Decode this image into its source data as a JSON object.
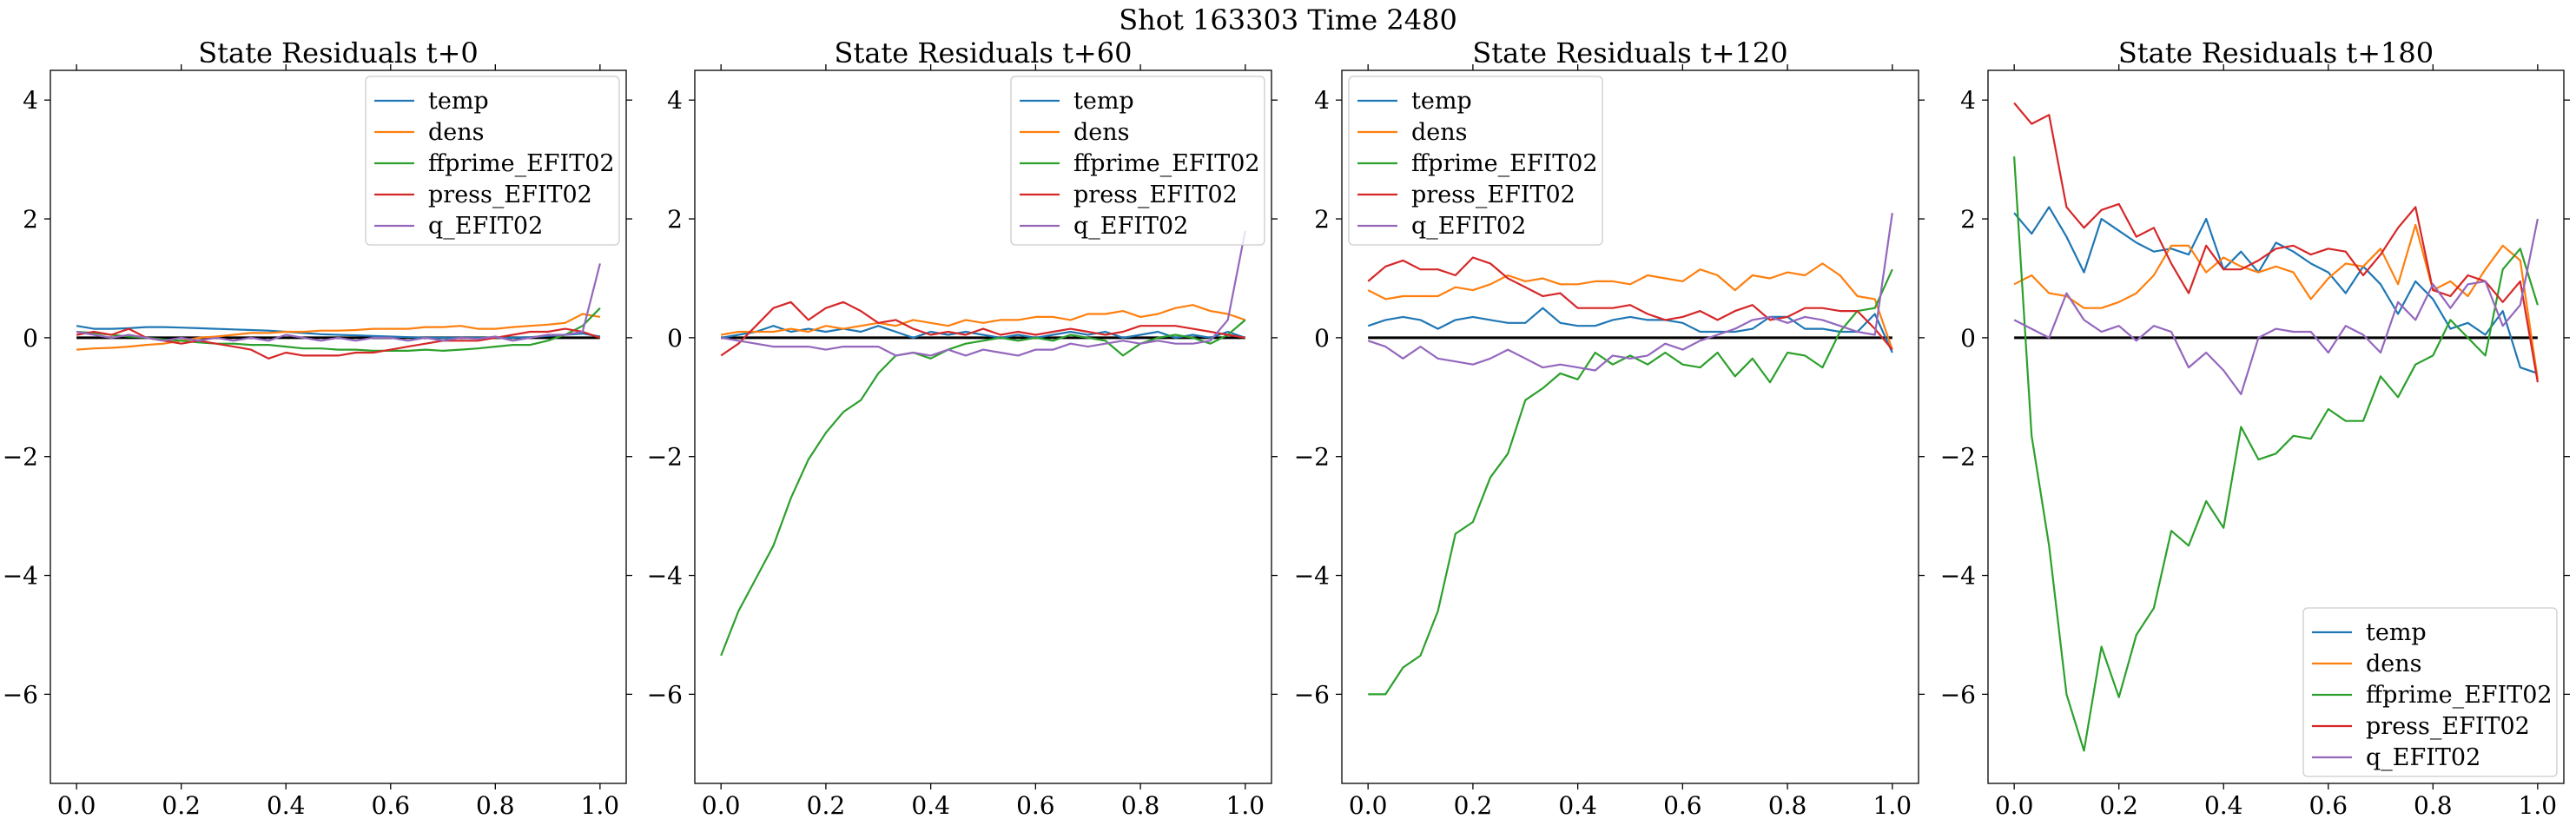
{
  "suptitle": "Shot 163303   Time 2480",
  "colors": {
    "temp": "#1f77b4",
    "dens": "#ff7f0e",
    "ffprime_EFIT02": "#2ca02c",
    "press_EFIT02": "#d62728",
    "q_EFIT02": "#9467bd",
    "zero_line": "#000000"
  },
  "chart_data": [
    {
      "type": "line",
      "title": "State Residuals t+0",
      "xlim": [
        -0.05,
        1.05
      ],
      "ylim": [
        -7.5,
        4.5
      ],
      "xticks": [
        0.0,
        0.2,
        0.4,
        0.6,
        0.8,
        1.0
      ],
      "xtick_labels": [
        "0.0",
        "0.2",
        "0.4",
        "0.6",
        "0.8",
        "1.0"
      ],
      "yticks": [
        -6,
        -4,
        -2,
        0,
        2,
        4
      ],
      "ytick_labels": [
        "−6",
        "−4",
        "−2",
        "0",
        "2",
        "4"
      ],
      "grid": false,
      "legend_position": "top-right",
      "x": [
        0.0,
        0.0333,
        0.0667,
        0.1,
        0.1333,
        0.1667,
        0.2,
        0.2333,
        0.2667,
        0.3,
        0.3333,
        0.3667,
        0.4,
        0.4333,
        0.4667,
        0.5,
        0.5333,
        0.5667,
        0.6,
        0.6333,
        0.6667,
        0.7,
        0.7333,
        0.7667,
        0.8,
        0.8333,
        0.8667,
        0.9,
        0.9333,
        0.9667,
        1.0
      ],
      "series": [
        {
          "name": "temp",
          "values": [
            0.2,
            0.15,
            0.15,
            0.16,
            0.18,
            0.18,
            0.17,
            0.16,
            0.15,
            0.14,
            0.13,
            0.12,
            0.1,
            0.08,
            0.06,
            0.05,
            0.04,
            0.03,
            0.02,
            0.01,
            0.0,
            0.0,
            0.0,
            0.0,
            0.0,
            0.0,
            0.01,
            0.03,
            0.05,
            0.07,
            0.02
          ]
        },
        {
          "name": "dens",
          "values": [
            -0.2,
            -0.18,
            -0.17,
            -0.15,
            -0.12,
            -0.1,
            -0.05,
            0.0,
            0.02,
            0.05,
            0.08,
            0.08,
            0.1,
            0.1,
            0.12,
            0.12,
            0.13,
            0.15,
            0.15,
            0.15,
            0.18,
            0.18,
            0.2,
            0.15,
            0.15,
            0.18,
            0.2,
            0.22,
            0.25,
            0.4,
            0.35
          ]
        },
        {
          "name": "ffprime_EFIT02",
          "values": [
            0.1,
            0.08,
            0.05,
            0.02,
            0.0,
            -0.03,
            -0.05,
            -0.08,
            -0.1,
            -0.1,
            -0.12,
            -0.12,
            -0.15,
            -0.18,
            -0.18,
            -0.2,
            -0.2,
            -0.22,
            -0.22,
            -0.22,
            -0.2,
            -0.22,
            -0.2,
            -0.18,
            -0.15,
            -0.12,
            -0.12,
            -0.05,
            0.05,
            0.2,
            0.5
          ]
        },
        {
          "name": "press_EFIT02",
          "values": [
            0.05,
            0.1,
            0.05,
            0.15,
            0.0,
            -0.05,
            -0.1,
            -0.05,
            -0.1,
            -0.15,
            -0.2,
            -0.35,
            -0.25,
            -0.3,
            -0.3,
            -0.3,
            -0.25,
            -0.25,
            -0.2,
            -0.15,
            -0.1,
            -0.05,
            -0.05,
            -0.05,
            0.0,
            0.05,
            0.1,
            0.1,
            0.15,
            0.1,
            0.0
          ]
        },
        {
          "name": "q_EFIT02",
          "values": [
            0.1,
            0.05,
            0.0,
            0.05,
            0.0,
            -0.05,
            0.0,
            -0.05,
            0.0,
            -0.05,
            0.0,
            -0.05,
            0.05,
            0.0,
            -0.05,
            0.0,
            -0.05,
            0.0,
            0.0,
            -0.05,
            0.0,
            -0.05,
            0.0,
            -0.02,
            0.02,
            -0.05,
            0.0,
            0.05,
            0.05,
            0.1,
            1.25
          ]
        }
      ]
    },
    {
      "type": "line",
      "title": "State Residuals t+60",
      "xlim": [
        -0.05,
        1.05
      ],
      "ylim": [
        -7.5,
        4.5
      ],
      "xticks": [
        0.0,
        0.2,
        0.4,
        0.6,
        0.8,
        1.0
      ],
      "xtick_labels": [
        "0.0",
        "0.2",
        "0.4",
        "0.6",
        "0.8",
        "1.0"
      ],
      "yticks": [
        -6,
        -4,
        -2,
        0,
        2,
        4
      ],
      "ytick_labels": [
        "−6",
        "−4",
        "−2",
        "0",
        "2",
        "4"
      ],
      "grid": false,
      "legend_position": "top-right",
      "x": [
        0.0,
        0.0333,
        0.0667,
        0.1,
        0.1333,
        0.1667,
        0.2,
        0.2333,
        0.2667,
        0.3,
        0.3333,
        0.3667,
        0.4,
        0.4333,
        0.4667,
        0.5,
        0.5333,
        0.5667,
        0.6,
        0.6333,
        0.6667,
        0.7,
        0.7333,
        0.7667,
        0.8,
        0.8333,
        0.8667,
        0.9,
        0.9333,
        0.9667,
        1.0
      ],
      "series": [
        {
          "name": "temp",
          "values": [
            0.0,
            0.05,
            0.1,
            0.2,
            0.1,
            0.15,
            0.1,
            0.15,
            0.1,
            0.2,
            0.1,
            0.0,
            0.1,
            0.05,
            0.1,
            0.05,
            0.0,
            0.05,
            0.0,
            0.05,
            0.1,
            0.05,
            0.1,
            0.0,
            0.05,
            0.1,
            0.0,
            0.05,
            0.0,
            0.1,
            0.0
          ]
        },
        {
          "name": "dens",
          "values": [
            0.05,
            0.1,
            0.1,
            0.1,
            0.15,
            0.1,
            0.2,
            0.15,
            0.2,
            0.25,
            0.2,
            0.3,
            0.25,
            0.2,
            0.3,
            0.25,
            0.3,
            0.3,
            0.35,
            0.35,
            0.3,
            0.4,
            0.4,
            0.45,
            0.35,
            0.4,
            0.5,
            0.55,
            0.45,
            0.4,
            0.3
          ]
        },
        {
          "name": "ffprime_EFIT02",
          "values": [
            -5.35,
            -4.6,
            -4.05,
            -3.5,
            -2.7,
            -2.05,
            -1.6,
            -1.25,
            -1.05,
            -0.6,
            -0.3,
            -0.25,
            -0.35,
            -0.2,
            -0.1,
            -0.05,
            0.0,
            -0.05,
            0.0,
            -0.05,
            0.05,
            0.0,
            -0.05,
            -0.3,
            -0.1,
            0.0,
            0.05,
            0.0,
            -0.1,
            0.05,
            0.3
          ]
        },
        {
          "name": "press_EFIT02",
          "values": [
            -0.3,
            -0.1,
            0.2,
            0.5,
            0.6,
            0.3,
            0.5,
            0.6,
            0.45,
            0.25,
            0.3,
            0.15,
            0.05,
            0.1,
            0.05,
            0.15,
            0.05,
            0.1,
            0.05,
            0.1,
            0.15,
            0.1,
            0.05,
            0.1,
            0.2,
            0.2,
            0.2,
            0.15,
            0.1,
            0.05,
            0.0
          ]
        },
        {
          "name": "q_EFIT02",
          "values": [
            0.0,
            -0.05,
            -0.1,
            -0.15,
            -0.15,
            -0.15,
            -0.2,
            -0.15,
            -0.15,
            -0.15,
            -0.3,
            -0.25,
            -0.3,
            -0.2,
            -0.3,
            -0.2,
            -0.25,
            -0.3,
            -0.2,
            -0.2,
            -0.1,
            -0.15,
            -0.1,
            -0.05,
            -0.1,
            -0.05,
            -0.1,
            -0.1,
            -0.05,
            0.3,
            1.8
          ]
        }
      ]
    },
    {
      "type": "line",
      "title": "State Residuals t+120",
      "xlim": [
        -0.05,
        1.05
      ],
      "ylim": [
        -7.5,
        4.5
      ],
      "xticks": [
        0.0,
        0.2,
        0.4,
        0.6,
        0.8,
        1.0
      ],
      "xtick_labels": [
        "0.0",
        "0.2",
        "0.4",
        "0.6",
        "0.8",
        "1.0"
      ],
      "yticks": [
        -6,
        -4,
        -2,
        0,
        2,
        4
      ],
      "ytick_labels": [
        "−6",
        "−4",
        "−2",
        "0",
        "2",
        "4"
      ],
      "grid": false,
      "legend_position": "top-left",
      "x": [
        0.0,
        0.0333,
        0.0667,
        0.1,
        0.1333,
        0.1667,
        0.2,
        0.2333,
        0.2667,
        0.3,
        0.3333,
        0.3667,
        0.4,
        0.4333,
        0.4667,
        0.5,
        0.5333,
        0.5667,
        0.6,
        0.6333,
        0.6667,
        0.7,
        0.7333,
        0.7667,
        0.8,
        0.8333,
        0.8667,
        0.9,
        0.9333,
        0.9667,
        1.0
      ],
      "series": [
        {
          "name": "temp",
          "values": [
            0.2,
            0.3,
            0.35,
            0.3,
            0.15,
            0.3,
            0.35,
            0.3,
            0.25,
            0.25,
            0.5,
            0.25,
            0.2,
            0.2,
            0.3,
            0.35,
            0.3,
            0.3,
            0.25,
            0.1,
            0.1,
            0.1,
            0.15,
            0.35,
            0.35,
            0.15,
            0.15,
            0.1,
            0.1,
            0.4,
            -0.25
          ]
        },
        {
          "name": "dens",
          "values": [
            0.8,
            0.65,
            0.7,
            0.7,
            0.7,
            0.85,
            0.8,
            0.9,
            1.05,
            0.95,
            1.0,
            0.9,
            0.9,
            0.95,
            0.95,
            0.9,
            1.05,
            1.0,
            0.95,
            1.15,
            1.05,
            0.8,
            1.05,
            1.0,
            1.1,
            1.05,
            1.25,
            1.05,
            0.7,
            0.65,
            -0.2
          ]
        },
        {
          "name": "ffprime_EFIT02",
          "values": [
            -6.0,
            -6.0,
            -5.55,
            -5.35,
            -4.6,
            -3.3,
            -3.1,
            -2.35,
            -1.95,
            -1.05,
            -0.85,
            -0.6,
            -0.7,
            -0.25,
            -0.45,
            -0.3,
            -0.45,
            -0.25,
            -0.45,
            -0.5,
            -0.25,
            -0.65,
            -0.35,
            -0.75,
            -0.25,
            -0.3,
            -0.5,
            0.1,
            0.45,
            0.5,
            1.15
          ]
        },
        {
          "name": "press_EFIT02",
          "values": [
            0.95,
            1.2,
            1.3,
            1.15,
            1.15,
            1.05,
            1.35,
            1.25,
            1.0,
            0.85,
            0.7,
            0.75,
            0.5,
            0.5,
            0.5,
            0.55,
            0.4,
            0.3,
            0.35,
            0.45,
            0.3,
            0.45,
            0.55,
            0.3,
            0.35,
            0.5,
            0.5,
            0.45,
            0.45,
            0.15,
            -0.2
          ]
        },
        {
          "name": "q_EFIT02",
          "values": [
            -0.05,
            -0.15,
            -0.35,
            -0.15,
            -0.35,
            -0.4,
            -0.45,
            -0.35,
            -0.2,
            -0.35,
            -0.5,
            -0.45,
            -0.5,
            -0.55,
            -0.3,
            -0.35,
            -0.3,
            -0.1,
            -0.2,
            -0.05,
            0.05,
            0.15,
            0.3,
            0.35,
            0.25,
            0.35,
            0.3,
            0.2,
            0.1,
            0.05,
            2.1
          ]
        }
      ]
    },
    {
      "type": "line",
      "title": "State Residuals t+180",
      "xlim": [
        -0.05,
        1.05
      ],
      "ylim": [
        -7.5,
        4.5
      ],
      "xticks": [
        0.0,
        0.2,
        0.4,
        0.6,
        0.8,
        1.0
      ],
      "xtick_labels": [
        "0.0",
        "0.2",
        "0.4",
        "0.6",
        "0.8",
        "1.0"
      ],
      "yticks": [
        -6,
        -4,
        -2,
        0,
        2,
        4
      ],
      "ytick_labels": [
        "−6",
        "−4",
        "−2",
        "0",
        "2",
        "4"
      ],
      "grid": false,
      "legend_position": "bottom-right",
      "x": [
        0.0,
        0.0333,
        0.0667,
        0.1,
        0.1333,
        0.1667,
        0.2,
        0.2333,
        0.2667,
        0.3,
        0.3333,
        0.3667,
        0.4,
        0.4333,
        0.4667,
        0.5,
        0.5333,
        0.5667,
        0.6,
        0.6333,
        0.6667,
        0.7,
        0.7333,
        0.7667,
        0.8,
        0.8333,
        0.8667,
        0.9,
        0.9333,
        0.9667,
        1.0
      ],
      "series": [
        {
          "name": "temp",
          "values": [
            2.1,
            1.75,
            2.2,
            1.7,
            1.1,
            2.0,
            1.8,
            1.6,
            1.45,
            1.5,
            1.4,
            2.0,
            1.15,
            1.45,
            1.1,
            1.6,
            1.45,
            1.25,
            1.1,
            0.75,
            1.2,
            0.9,
            0.4,
            0.95,
            0.65,
            0.15,
            0.25,
            0.05,
            0.45,
            -0.5,
            -0.6
          ]
        },
        {
          "name": "dens",
          "values": [
            0.9,
            1.05,
            0.75,
            0.7,
            0.5,
            0.5,
            0.6,
            0.75,
            1.05,
            1.55,
            1.55,
            1.1,
            1.35,
            1.2,
            1.1,
            1.2,
            1.1,
            0.65,
            1.0,
            1.25,
            1.2,
            1.5,
            0.9,
            1.9,
            0.8,
            0.95,
            0.7,
            1.15,
            1.55,
            1.3,
            -0.7
          ]
        },
        {
          "name": "ffprime_EFIT02",
          "values": [
            3.05,
            -1.65,
            -3.5,
            -6.0,
            -6.95,
            -5.2,
            -6.05,
            -5.0,
            -4.55,
            -3.25,
            -3.5,
            -2.75,
            -3.2,
            -1.5,
            -2.05,
            -1.95,
            -1.65,
            -1.7,
            -1.2,
            -1.4,
            -1.4,
            -0.65,
            -1.0,
            -0.45,
            -0.3,
            0.3,
            0.0,
            -0.3,
            1.15,
            1.5,
            0.55
          ]
        },
        {
          "name": "press_EFIT02",
          "values": [
            3.95,
            3.6,
            3.75,
            2.2,
            1.85,
            2.15,
            2.25,
            1.7,
            1.85,
            1.25,
            0.75,
            1.55,
            1.15,
            1.15,
            1.3,
            1.5,
            1.55,
            1.4,
            1.5,
            1.45,
            1.05,
            1.4,
            1.85,
            2.2,
            0.8,
            0.7,
            1.05,
            0.95,
            0.6,
            0.95,
            -0.75
          ]
        },
        {
          "name": "q_EFIT02",
          "values": [
            0.3,
            0.15,
            0.0,
            0.75,
            0.3,
            0.1,
            0.2,
            -0.05,
            0.2,
            0.1,
            -0.5,
            -0.25,
            -0.55,
            -0.95,
            0.0,
            0.15,
            0.1,
            0.1,
            -0.25,
            0.2,
            0.05,
            -0.25,
            0.6,
            0.3,
            0.9,
            0.5,
            0.9,
            0.95,
            0.2,
            0.55,
            2.0
          ]
        }
      ]
    }
  ]
}
